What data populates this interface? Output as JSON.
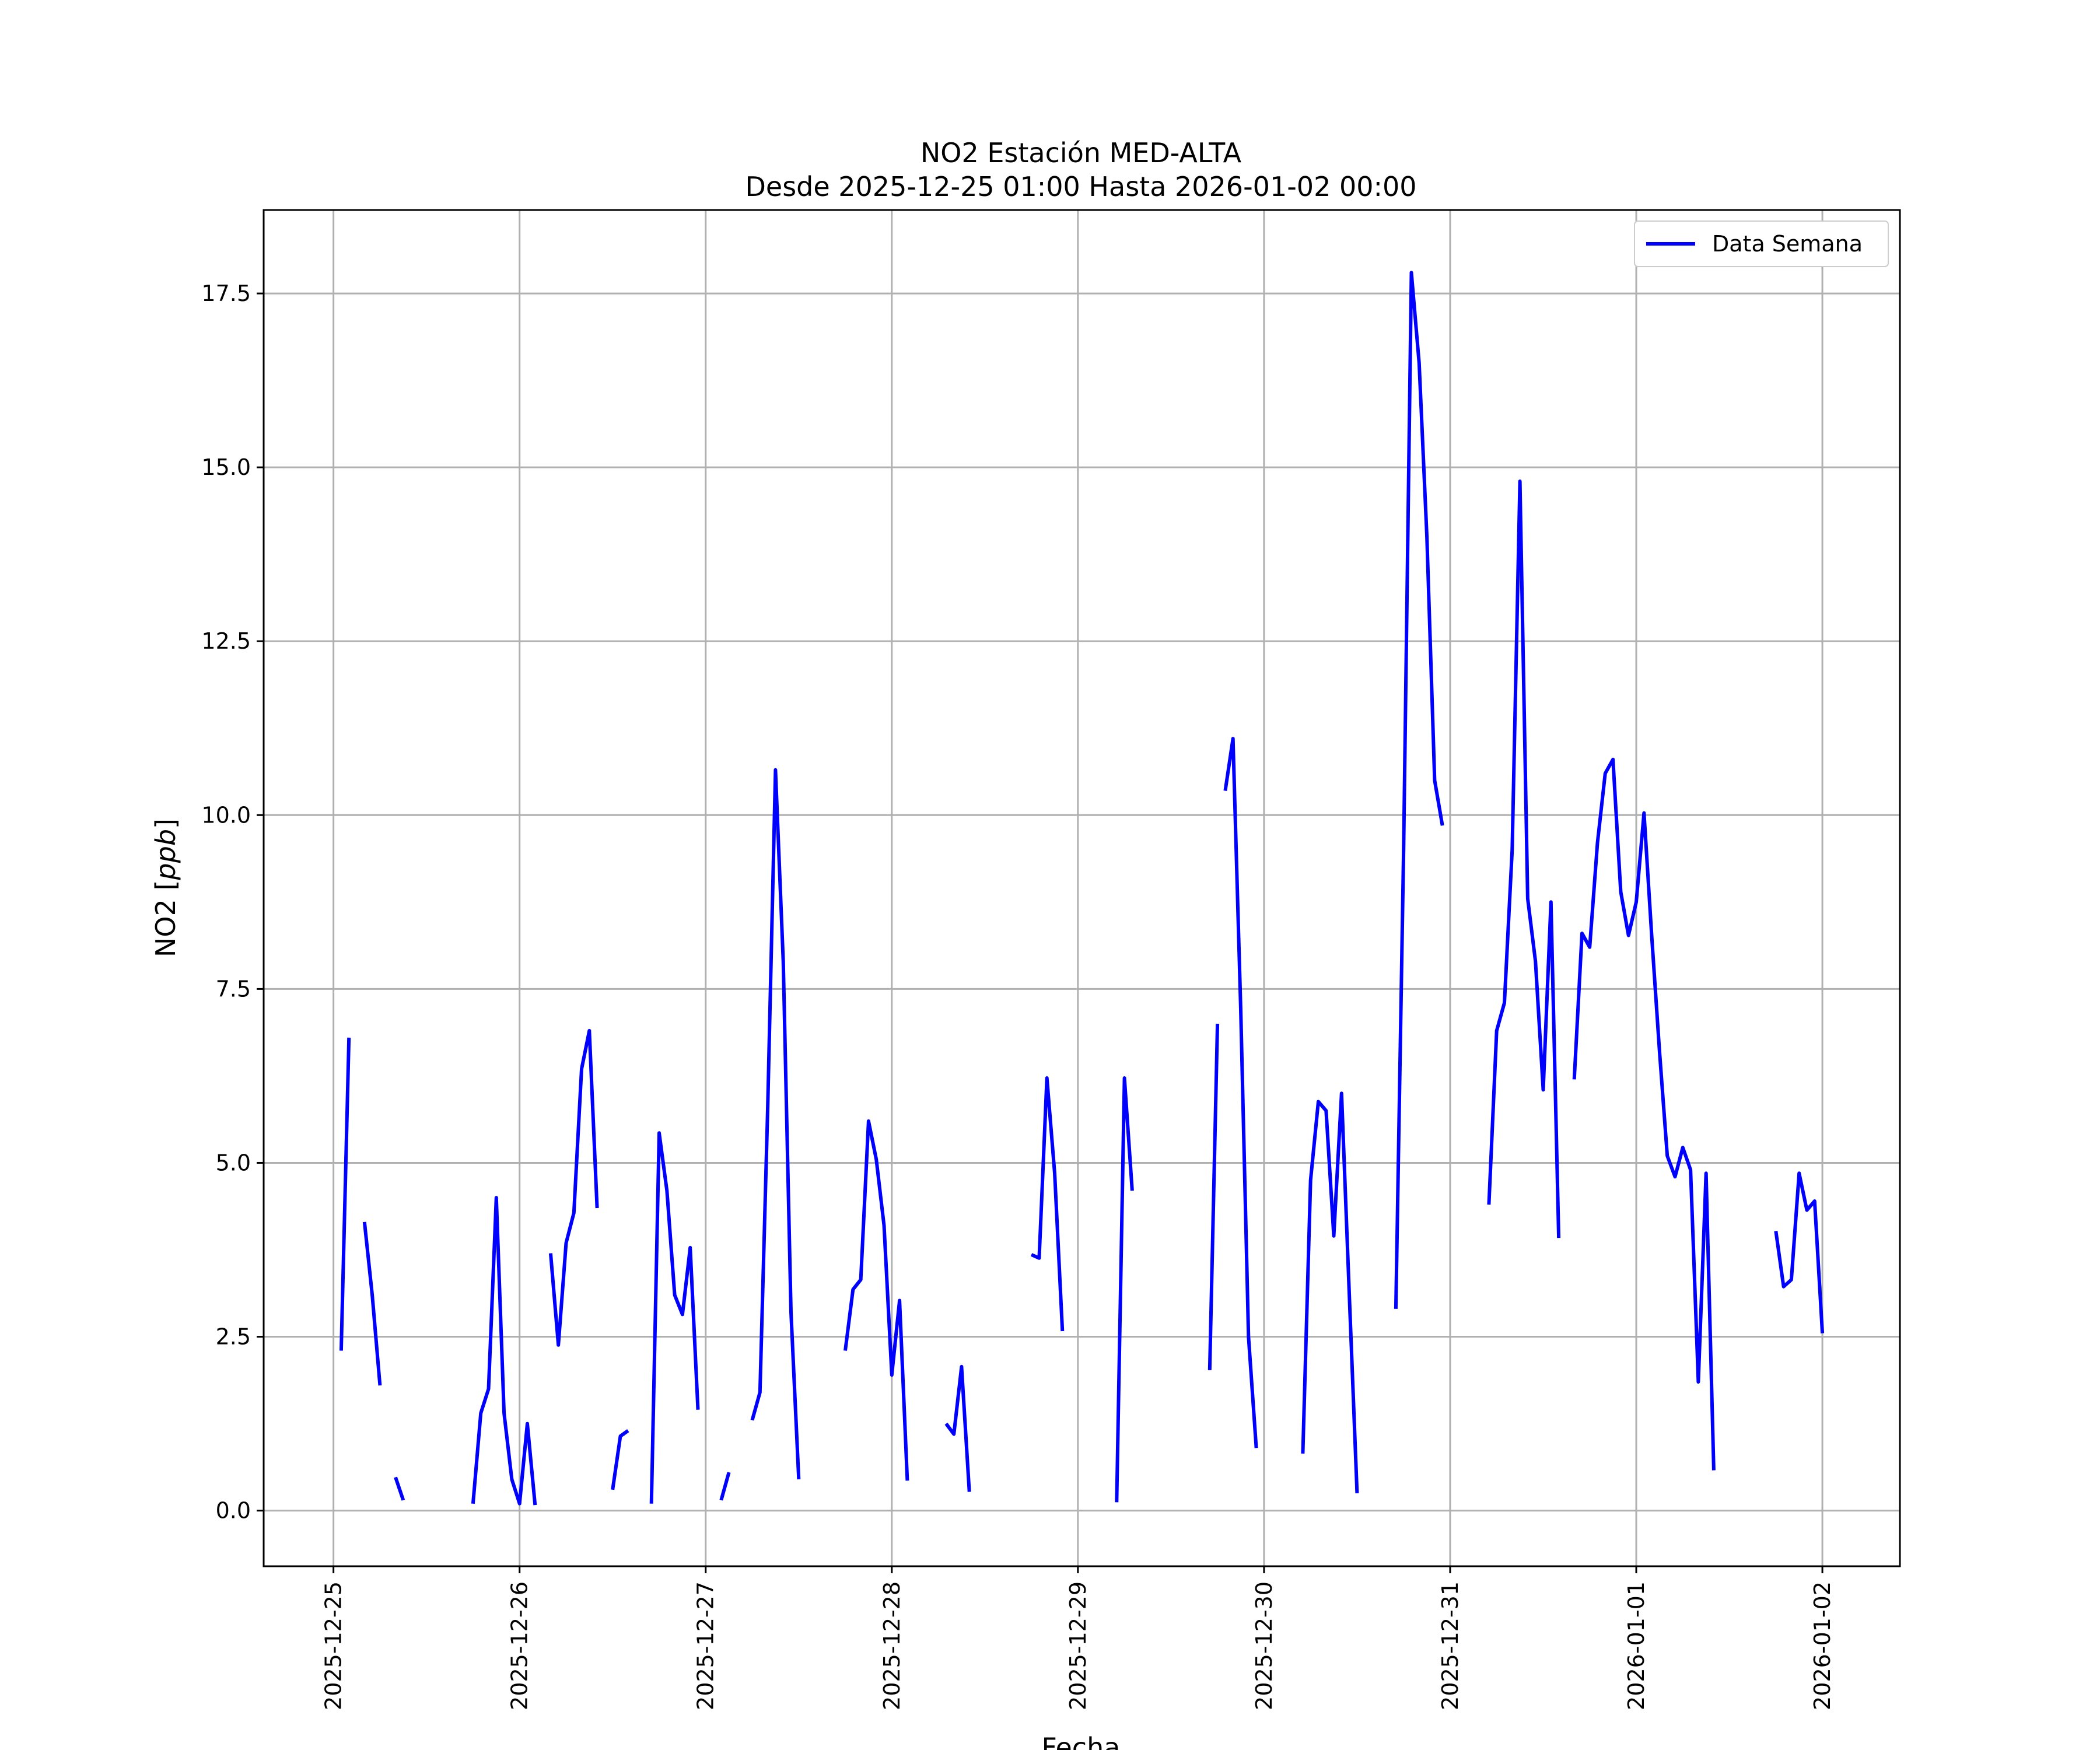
{
  "chart_data": {
    "type": "line",
    "title": "NO2 Estación MED-ALTA",
    "subtitle": "Desde 2025-12-25 01:00 Hasta 2026-01-02 00:00",
    "xlabel": "Fecha",
    "ylabel": "NO2 [ppb]",
    "ylabel_parts": {
      "prefix": "NO2 [",
      "unit": "ppb",
      "suffix": "]"
    },
    "xlim": [
      "2025-12-24 15:00",
      "2026-01-02 10:00"
    ],
    "ylim": [
      -0.8,
      18.7
    ],
    "x_ticks": [
      "2025-12-25",
      "2025-12-26",
      "2025-12-27",
      "2025-12-28",
      "2025-12-29",
      "2025-12-30",
      "2025-12-31",
      "2026-01-01",
      "2026-01-02"
    ],
    "y_ticks": [
      0.0,
      2.5,
      5.0,
      7.5,
      10.0,
      12.5,
      15.0,
      17.5
    ],
    "y_tick_labels": [
      "0.0",
      "2.5",
      "5.0",
      "7.5",
      "10.0",
      "12.5",
      "15.0",
      "17.5"
    ],
    "grid": true,
    "legend_position": "top-right",
    "color": "#0000ff",
    "series": [
      {
        "name": "Data Semana",
        "segments": [
          [
            [
              "2025-12-25 01:00",
              2.3
            ],
            [
              "2025-12-25 02:00",
              6.8
            ]
          ],
          [
            [
              "2025-12-25 04:00",
              4.15
            ],
            [
              "2025-12-25 05:00",
              3.1
            ],
            [
              "2025-12-25 06:00",
              1.8
            ]
          ],
          [
            [
              "2025-12-25 08:00",
              0.48
            ],
            [
              "2025-12-25 09:00",
              0.15
            ]
          ],
          [
            [
              "2025-12-25 18:00",
              0.1
            ],
            [
              "2025-12-25 19:00",
              1.4
            ],
            [
              "2025-12-25 20:00",
              1.75
            ],
            [
              "2025-12-25 21:00",
              4.5
            ],
            [
              "2025-12-25 22:00",
              1.4
            ],
            [
              "2025-12-25 23:00",
              0.45
            ],
            [
              "2025-12-26 00:00",
              0.1
            ],
            [
              "2025-12-26 01:00",
              1.25
            ],
            [
              "2025-12-26 02:00",
              0.08
            ]
          ],
          [
            [
              "2025-12-26 04:00",
              3.7
            ],
            [
              "2025-12-26 05:00",
              2.38
            ],
            [
              "2025-12-26 06:00",
              3.85
            ],
            [
              "2025-12-26 07:00",
              4.28
            ],
            [
              "2025-12-26 08:00",
              6.35
            ],
            [
              "2025-12-26 09:00",
              6.9
            ],
            [
              "2025-12-26 10:00",
              4.35
            ]
          ],
          [
            [
              "2025-12-26 12:00",
              0.3
            ],
            [
              "2025-12-26 13:00",
              1.07
            ],
            [
              "2025-12-26 14:00",
              1.15
            ]
          ],
          [
            [
              "2025-12-26 17:00",
              0.1
            ],
            [
              "2025-12-26 18:00",
              5.43
            ],
            [
              "2025-12-26 19:00",
              4.6
            ],
            [
              "2025-12-26 20:00",
              3.1
            ],
            [
              "2025-12-26 21:00",
              2.82
            ],
            [
              "2025-12-26 22:00",
              3.78
            ],
            [
              "2025-12-26 23:00",
              1.45
            ]
          ],
          [
            [
              "2025-12-27 02:00",
              0.15
            ],
            [
              "2025-12-27 03:00",
              0.55
            ]
          ],
          [
            [
              "2025-12-27 06:00",
              1.3
            ],
            [
              "2025-12-27 07:00",
              1.7
            ],
            [
              "2025-12-27 08:00",
              5.8
            ],
            [
              "2025-12-27 09:00",
              10.65
            ],
            [
              "2025-12-27 10:00",
              7.9
            ],
            [
              "2025-12-27 11:00",
              2.85
            ],
            [
              "2025-12-27 12:00",
              0.45
            ]
          ],
          [
            [
              "2025-12-27 18:00",
              2.3
            ],
            [
              "2025-12-27 19:00",
              3.18
            ],
            [
              "2025-12-27 20:00",
              3.32
            ],
            [
              "2025-12-27 21:00",
              5.6
            ],
            [
              "2025-12-27 22:00",
              5.05
            ],
            [
              "2025-12-27 23:00",
              4.1
            ],
            [
              "2025-12-28 00:00",
              1.95
            ],
            [
              "2025-12-28 01:00",
              3.02
            ],
            [
              "2025-12-28 02:00",
              0.43
            ]
          ],
          [
            [
              "2025-12-28 07:00",
              1.25
            ],
            [
              "2025-12-28 08:00",
              1.1
            ],
            [
              "2025-12-28 09:00",
              2.07
            ],
            [
              "2025-12-28 10:00",
              0.27
            ]
          ],
          [
            [
              "2025-12-28 18:00",
              3.68
            ],
            [
              "2025-12-28 19:00",
              3.63
            ],
            [
              "2025-12-28 20:00",
              6.22
            ],
            [
              "2025-12-28 21:00",
              4.85
            ],
            [
              "2025-12-28 22:00",
              2.58
            ]
          ],
          [
            [
              "2025-12-29 05:00",
              0.12
            ],
            [
              "2025-12-29 06:00",
              6.22
            ],
            [
              "2025-12-29 07:00",
              4.6
            ]
          ],
          [
            [
              "2025-12-29 17:00",
              2.02
            ],
            [
              "2025-12-29 18:00",
              7.0
            ]
          ],
          [
            [
              "2025-12-29 19:00",
              10.35
            ],
            [
              "2025-12-29 20:00",
              11.1
            ],
            [
              "2025-12-29 21:00",
              7.2
            ],
            [
              "2025-12-29 22:00",
              2.5
            ],
            [
              "2025-12-29 23:00",
              0.9
            ]
          ],
          [
            [
              "2025-12-30 05:00",
              0.82
            ],
            [
              "2025-12-30 06:00",
              4.75
            ],
            [
              "2025-12-30 07:00",
              5.88
            ],
            [
              "2025-12-30 08:00",
              5.75
            ],
            [
              "2025-12-30 09:00",
              3.95
            ],
            [
              "2025-12-30 10:00",
              6.0
            ],
            [
              "2025-12-30 11:00",
              3.1
            ],
            [
              "2025-12-30 12:00",
              0.25
            ]
          ],
          [
            [
              "2025-12-30 17:00",
              2.9
            ],
            [
              "2025-12-30 18:00",
              9.5
            ],
            [
              "2025-12-30 19:00",
              17.8
            ],
            [
              "2025-12-30 20:00",
              16.5
            ],
            [
              "2025-12-30 21:00",
              14.0
            ],
            [
              "2025-12-30 22:00",
              10.5
            ],
            [
              "2025-12-30 23:00",
              9.85
            ]
          ],
          [
            [
              "2025-12-31 05:00",
              4.4
            ],
            [
              "2025-12-31 06:00",
              6.9
            ],
            [
              "2025-12-31 07:00",
              7.3
            ],
            [
              "2025-12-31 08:00",
              9.5
            ],
            [
              "2025-12-31 09:00",
              14.8
            ],
            [
              "2025-12-31 10:00",
              8.8
            ],
            [
              "2025-12-31 11:00",
              7.9
            ],
            [
              "2025-12-31 12:00",
              6.05
            ],
            [
              "2025-12-31 13:00",
              8.75
            ],
            [
              "2025-12-31 14:00",
              3.92
            ]
          ],
          [
            [
              "2025-12-31 16:00",
              6.2
            ],
            [
              "2025-12-31 17:00",
              8.3
            ],
            [
              "2025-12-31 18:00",
              8.1
            ],
            [
              "2025-12-31 19:00",
              9.6
            ],
            [
              "2025-12-31 20:00",
              10.6
            ],
            [
              "2025-12-31 21:00",
              10.8
            ],
            [
              "2025-12-31 22:00",
              8.9
            ],
            [
              "2025-12-31 23:00",
              8.27
            ],
            [
              "2026-01-01 00:00",
              8.75
            ],
            [
              "2026-01-01 01:00",
              10.03
            ],
            [
              "2026-01-01 02:00",
              8.25
            ],
            [
              "2026-01-01 03:00",
              6.6
            ],
            [
              "2026-01-01 04:00",
              5.1
            ],
            [
              "2026-01-01 05:00",
              4.8
            ],
            [
              "2026-01-01 06:00",
              5.22
            ],
            [
              "2026-01-01 07:00",
              4.9
            ],
            [
              "2026-01-01 08:00",
              1.85
            ],
            [
              "2026-01-01 09:00",
              4.85
            ],
            [
              "2026-01-01 10:00",
              0.58
            ]
          ],
          [
            [
              "2026-01-01 18:00",
              4.02
            ],
            [
              "2026-01-01 19:00",
              3.22
            ],
            [
              "2026-01-01 20:00",
              3.32
            ],
            [
              "2026-01-01 21:00",
              4.85
            ],
            [
              "2026-01-01 22:00",
              4.32
            ],
            [
              "2026-01-01 23:00",
              4.45
            ],
            [
              "2026-01-02 00:00",
              2.55
            ]
          ]
        ]
      }
    ]
  }
}
